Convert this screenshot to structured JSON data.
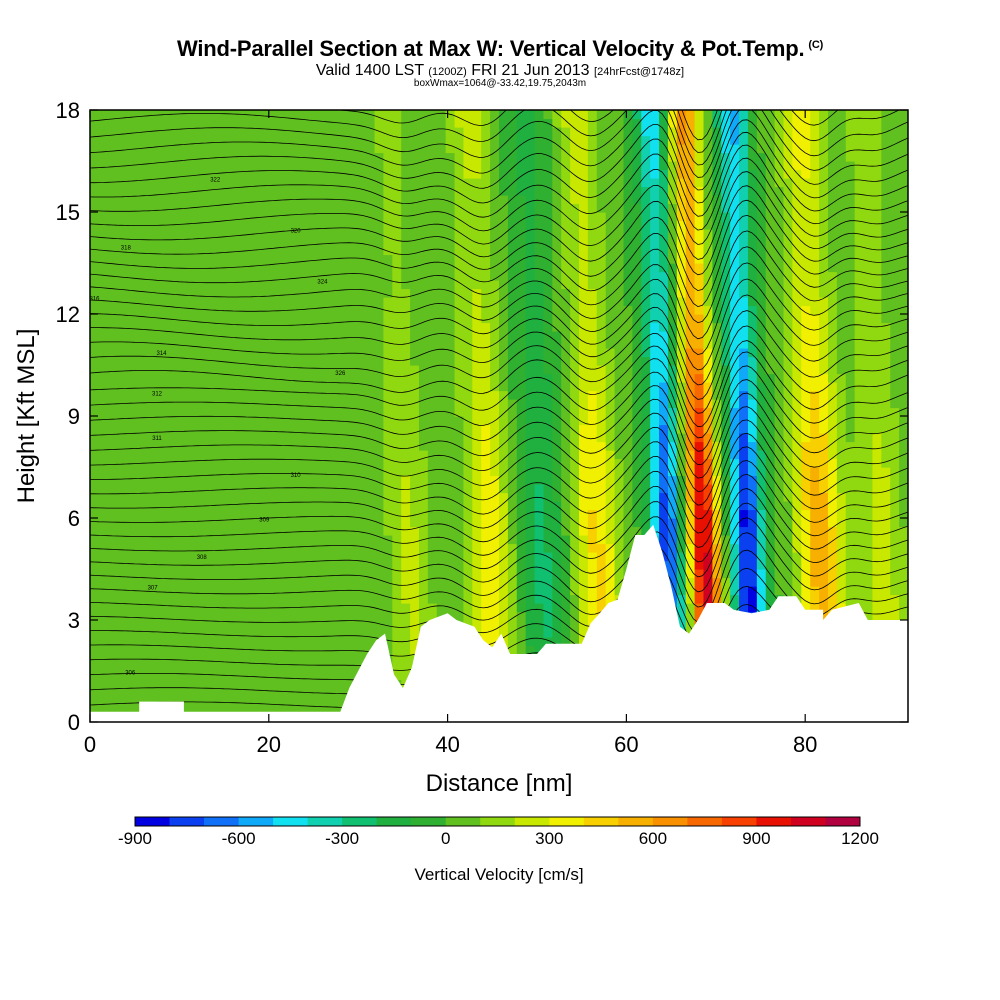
{
  "header": {
    "title": "Wind-Parallel Section at Max W: Vertical Velocity & Pot.Temp.",
    "copyright": "(C)",
    "valid_prefix": "Valid 1400 LST",
    "valid_utc": "(1200Z)",
    "valid_date": "FRI 21 Jun 2013",
    "forecast": "[24hrFcst@1748z]",
    "box_info": "boxWmax=1064@-33.42,19.75,2043m"
  },
  "chart_data": {
    "type": "contour-section",
    "title": "Wind-Parallel Section at Max W: Vertical Velocity & Pot.Temp.",
    "xlabel": "Distance [nm]",
    "ylabel": "Height [Kft MSL]",
    "xlim": [
      0,
      91.5
    ],
    "ylim": [
      0,
      18
    ],
    "x_ticks": [
      0,
      20,
      40,
      60,
      80
    ],
    "y_ticks": [
      0,
      3,
      6,
      9,
      12,
      15,
      18
    ],
    "colorbar": {
      "title": "Vertical Velocity [cm/s]",
      "levels": [
        -900,
        -800,
        -700,
        -600,
        -500,
        -400,
        -300,
        -200,
        -100,
        0,
        100,
        200,
        300,
        400,
        500,
        600,
        700,
        800,
        900,
        1000,
        1100,
        1200
      ],
      "tick_labels": [
        "-900",
        "-600",
        "-300",
        "0",
        "300",
        "600",
        "900",
        "1200"
      ],
      "colors": [
        "#0000e0",
        "#0a40f0",
        "#1070f8",
        "#10a8f8",
        "#10e0f0",
        "#10d0b0",
        "#10c070",
        "#20b040",
        "#30b030",
        "#60c020",
        "#90d810",
        "#c8e800",
        "#f0f000",
        "#f8d000",
        "#f8b000",
        "#f89000",
        "#f86800",
        "#f84000",
        "#e81000",
        "#d00020",
        "#b00040"
      ]
    },
    "w_bands_cm_s": [
      {
        "x": 35,
        "w": 220
      },
      {
        "x": 44,
        "w": 380
      },
      {
        "x": 50,
        "w": -220
      },
      {
        "x": 56,
        "w": 420
      },
      {
        "x": 64,
        "w": -750
      },
      {
        "x": 68,
        "w": 1064
      },
      {
        "x": 73,
        "w": -850
      },
      {
        "x": 81,
        "w": 560
      },
      {
        "x": 88,
        "w": 240
      }
    ],
    "terrain_kft": [
      [
        0,
        0.3
      ],
      [
        5.5,
        0.3
      ],
      [
        5.5,
        0.6
      ],
      [
        10.5,
        0.6
      ],
      [
        10.5,
        0.3
      ],
      [
        28,
        0.3
      ],
      [
        29,
        1.0
      ],
      [
        30,
        1.5
      ],
      [
        31,
        2.0
      ],
      [
        32,
        2.4
      ],
      [
        33,
        2.6
      ],
      [
        34,
        1.4
      ],
      [
        35,
        1.0
      ],
      [
        36,
        1.6
      ],
      [
        37,
        2.8
      ],
      [
        38,
        3.0
      ],
      [
        40,
        3.2
      ],
      [
        41,
        3.0
      ],
      [
        43,
        2.8
      ],
      [
        44,
        2.4
      ],
      [
        45,
        2.2
      ],
      [
        46,
        2.6
      ],
      [
        47,
        2.0
      ],
      [
        50,
        2.0
      ],
      [
        51,
        2.3
      ],
      [
        55,
        2.3
      ],
      [
        56,
        2.9
      ],
      [
        57,
        3.2
      ],
      [
        58,
        3.5
      ],
      [
        59,
        3.6
      ],
      [
        60,
        4.5
      ],
      [
        61,
        5.5
      ],
      [
        62,
        5.5
      ],
      [
        63,
        5.8
      ],
      [
        64,
        5.0
      ],
      [
        65,
        4.0
      ],
      [
        66,
        2.8
      ],
      [
        67,
        2.6
      ],
      [
        68,
        3.0
      ],
      [
        69,
        3.5
      ],
      [
        71,
        3.5
      ],
      [
        72,
        3.3
      ],
      [
        74,
        3.2
      ],
      [
        76,
        3.3
      ],
      [
        77,
        3.7
      ],
      [
        79,
        3.7
      ],
      [
        80,
        3.3
      ],
      [
        82,
        3.3
      ],
      [
        82,
        3.0
      ],
      [
        83,
        3.3
      ],
      [
        86,
        3.5
      ],
      [
        87,
        3.0
      ],
      [
        91.5,
        3.0
      ]
    ],
    "theta_labels": [
      "306",
      "307",
      "308",
      "309",
      "310",
      "311",
      "312",
      "314",
      "316",
      "318",
      "320",
      "322",
      "324",
      "326"
    ]
  }
}
